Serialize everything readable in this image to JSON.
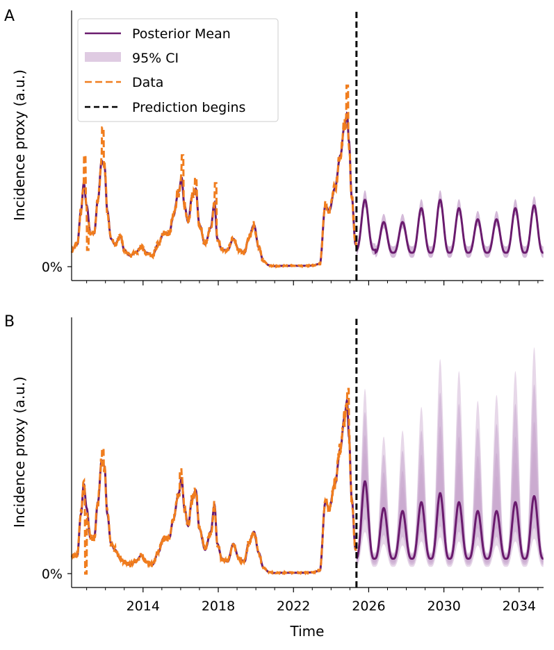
{
  "chart_data": {
    "type": "line",
    "x_ticks": [
      "2014",
      "2018",
      "2022",
      "2026",
      "2030",
      "2034"
    ],
    "x_tick_values": [
      2014,
      2018,
      2022,
      2026,
      2030,
      2034
    ],
    "xlim": [
      2010.2,
      2035.3
    ],
    "xlabel": "Time",
    "prediction_start": 2025.35,
    "colors": {
      "mean": "#6a1b6e",
      "ci": "#c9a9cf",
      "data": "#f07d1e",
      "prediction": "#000000"
    },
    "panels": [
      {
        "label": "A",
        "ylabel": "Incidence proxy (a.u.)",
        "y_tick": "0%",
        "ylim": [
          -0.06,
          0.92
        ],
        "legend": {
          "position": "upper-left",
          "entries": [
            {
              "name": "Posterior Mean",
              "style": "solid"
            },
            {
              "name": "95% CI",
              "style": "band"
            },
            {
              "name": "Data",
              "style": "dashed"
            },
            {
              "name": "Prediction begins",
              "style": "dashed-black"
            }
          ]
        },
        "history": [
          [
            2010.2,
            0.06
          ],
          [
            2010.5,
            0.08
          ],
          [
            2010.7,
            0.2
          ],
          [
            2010.85,
            0.3
          ],
          [
            2011.0,
            0.22
          ],
          [
            2011.2,
            0.12
          ],
          [
            2011.4,
            0.12
          ],
          [
            2011.6,
            0.24
          ],
          [
            2011.8,
            0.38
          ],
          [
            2011.95,
            0.36
          ],
          [
            2012.1,
            0.2
          ],
          [
            2012.3,
            0.1
          ],
          [
            2012.5,
            0.08
          ],
          [
            2012.8,
            0.11
          ],
          [
            2013.0,
            0.06
          ],
          [
            2013.3,
            0.04
          ],
          [
            2013.6,
            0.05
          ],
          [
            2013.9,
            0.07
          ],
          [
            2014.2,
            0.05
          ],
          [
            2014.5,
            0.04
          ],
          [
            2014.8,
            0.08
          ],
          [
            2015.1,
            0.12
          ],
          [
            2015.4,
            0.12
          ],
          [
            2015.6,
            0.18
          ],
          [
            2015.9,
            0.27
          ],
          [
            2016.05,
            0.32
          ],
          [
            2016.2,
            0.22
          ],
          [
            2016.4,
            0.16
          ],
          [
            2016.6,
            0.25
          ],
          [
            2016.8,
            0.28
          ],
          [
            2017.0,
            0.15
          ],
          [
            2017.3,
            0.08
          ],
          [
            2017.6,
            0.14
          ],
          [
            2017.8,
            0.23
          ],
          [
            2017.95,
            0.1
          ],
          [
            2018.2,
            0.06
          ],
          [
            2018.5,
            0.06
          ],
          [
            2018.8,
            0.1
          ],
          [
            2019.1,
            0.06
          ],
          [
            2019.4,
            0.05
          ],
          [
            2019.6,
            0.1
          ],
          [
            2019.9,
            0.15
          ],
          [
            2020.15,
            0.07
          ],
          [
            2020.4,
            0.02
          ],
          [
            2020.7,
            0.005
          ],
          [
            2021.0,
            0.002
          ],
          [
            2021.5,
            0.003
          ],
          [
            2022.0,
            0.003
          ],
          [
            2022.5,
            0.003
          ],
          [
            2023.0,
            0.004
          ],
          [
            2023.4,
            0.01
          ],
          [
            2023.7,
            0.22
          ],
          [
            2023.9,
            0.2
          ],
          [
            2024.2,
            0.28
          ],
          [
            2024.5,
            0.4
          ],
          [
            2024.7,
            0.5
          ],
          [
            2024.85,
            0.55
          ],
          [
            2024.95,
            0.45
          ],
          [
            2025.1,
            0.25
          ],
          [
            2025.3,
            0.08
          ]
        ],
        "data_extra": [
          [
            2010.9,
            0.4
          ],
          [
            2011.05,
            0.06
          ],
          [
            2011.85,
            0.5
          ],
          [
            2016.1,
            0.4
          ],
          [
            2016.8,
            0.32
          ],
          [
            2017.85,
            0.3
          ],
          [
            2024.85,
            0.65
          ]
        ],
        "forecast_peaks": [
          0.24,
          0.16,
          0.16,
          0.21,
          0.24,
          0.21,
          0.17,
          0.17,
          0.21,
          0.22
        ],
        "forecast_troughs": [
          0.06,
          0.05,
          0.05,
          0.05,
          0.05,
          0.05,
          0.05,
          0.05,
          0.05,
          0.05
        ],
        "ci_half_width": 0.04
      },
      {
        "label": "B",
        "ylabel": "Incidence proxy (a.u.)",
        "y_tick": "0%",
        "ylim": [
          -0.04,
          0.86
        ],
        "history": [
          [
            2010.2,
            0.06
          ],
          [
            2010.5,
            0.06
          ],
          [
            2010.7,
            0.2
          ],
          [
            2010.85,
            0.3
          ],
          [
            2011.0,
            0.22
          ],
          [
            2011.2,
            0.12
          ],
          [
            2011.4,
            0.12
          ],
          [
            2011.6,
            0.24
          ],
          [
            2011.8,
            0.38
          ],
          [
            2011.95,
            0.36
          ],
          [
            2012.1,
            0.2
          ],
          [
            2012.3,
            0.1
          ],
          [
            2012.5,
            0.08
          ],
          [
            2012.8,
            0.05
          ],
          [
            2013.0,
            0.04
          ],
          [
            2013.3,
            0.03
          ],
          [
            2013.6,
            0.04
          ],
          [
            2013.9,
            0.06
          ],
          [
            2014.2,
            0.04
          ],
          [
            2014.5,
            0.03
          ],
          [
            2014.8,
            0.07
          ],
          [
            2015.1,
            0.12
          ],
          [
            2015.4,
            0.12
          ],
          [
            2015.6,
            0.18
          ],
          [
            2015.9,
            0.27
          ],
          [
            2016.05,
            0.32
          ],
          [
            2016.2,
            0.22
          ],
          [
            2016.4,
            0.16
          ],
          [
            2016.6,
            0.25
          ],
          [
            2016.8,
            0.28
          ],
          [
            2017.0,
            0.15
          ],
          [
            2017.3,
            0.08
          ],
          [
            2017.6,
            0.14
          ],
          [
            2017.8,
            0.23
          ],
          [
            2017.95,
            0.1
          ],
          [
            2018.2,
            0.05
          ],
          [
            2018.5,
            0.04
          ],
          [
            2018.8,
            0.1
          ],
          [
            2019.1,
            0.05
          ],
          [
            2019.4,
            0.04
          ],
          [
            2019.6,
            0.1
          ],
          [
            2019.9,
            0.14
          ],
          [
            2020.15,
            0.07
          ],
          [
            2020.4,
            0.02
          ],
          [
            2020.7,
            0.005
          ],
          [
            2021.0,
            0.002
          ],
          [
            2021.5,
            0.003
          ],
          [
            2022.0,
            0.003
          ],
          [
            2022.5,
            0.003
          ],
          [
            2023.0,
            0.004
          ],
          [
            2023.4,
            0.01
          ],
          [
            2023.7,
            0.24
          ],
          [
            2023.9,
            0.22
          ],
          [
            2024.2,
            0.3
          ],
          [
            2024.5,
            0.42
          ],
          [
            2024.7,
            0.52
          ],
          [
            2024.85,
            0.58
          ],
          [
            2024.95,
            0.46
          ],
          [
            2025.1,
            0.25
          ],
          [
            2025.3,
            0.08
          ]
        ],
        "data_extra": [
          [
            2010.95,
            0.0
          ],
          [
            2011.85,
            0.42
          ],
          [
            2016.0,
            0.35
          ],
          [
            2024.9,
            0.62
          ]
        ],
        "forecast_peaks": [
          0.31,
          0.22,
          0.21,
          0.24,
          0.27,
          0.24,
          0.21,
          0.21,
          0.24,
          0.26
        ],
        "forecast_troughs": [
          0.05,
          0.05,
          0.05,
          0.05,
          0.05,
          0.05,
          0.05,
          0.05,
          0.05,
          0.05
        ],
        "ci_half_width": 0.12,
        "ci_outer_peaks": [
          0.62,
          0.46,
          0.48,
          0.56,
          0.72,
          0.68,
          0.58,
          0.6,
          0.68,
          0.76
        ]
      }
    ]
  }
}
